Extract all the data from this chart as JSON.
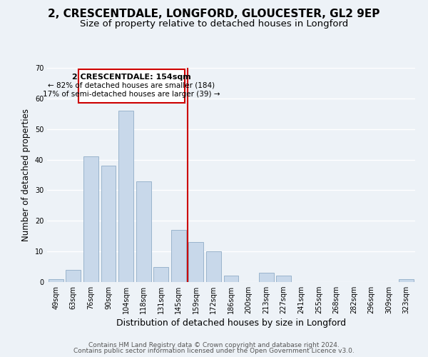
{
  "title": "2, CRESCENTDALE, LONGFORD, GLOUCESTER, GL2 9EP",
  "subtitle": "Size of property relative to detached houses in Longford",
  "xlabel": "Distribution of detached houses by size in Longford",
  "ylabel": "Number of detached properties",
  "bar_color": "#c8d8ea",
  "bar_edgecolor": "#9ab4cc",
  "categories": [
    "49sqm",
    "63sqm",
    "76sqm",
    "90sqm",
    "104sqm",
    "118sqm",
    "131sqm",
    "145sqm",
    "159sqm",
    "172sqm",
    "186sqm",
    "200sqm",
    "213sqm",
    "227sqm",
    "241sqm",
    "255sqm",
    "268sqm",
    "282sqm",
    "296sqm",
    "309sqm",
    "323sqm"
  ],
  "values": [
    1,
    4,
    41,
    38,
    56,
    33,
    5,
    17,
    13,
    10,
    2,
    0,
    3,
    2,
    0,
    0,
    0,
    0,
    0,
    0,
    1
  ],
  "ylim": [
    0,
    70
  ],
  "yticks": [
    0,
    10,
    20,
    30,
    40,
    50,
    60,
    70
  ],
  "vline_x": 7.5,
  "vline_color": "#cc0000",
  "annotation_title": "2 CRESCENTDALE: 154sqm",
  "annotation_line1": "← 82% of detached houses are smaller (184)",
  "annotation_line2": "17% of semi-detached houses are larger (39) →",
  "annotation_box_edgecolor": "#cc0000",
  "footer_line1": "Contains HM Land Registry data © Crown copyright and database right 2024.",
  "footer_line2": "Contains public sector information licensed under the Open Government Licence v3.0.",
  "background_color": "#edf2f7",
  "plot_background_color": "#edf2f7",
  "grid_color": "#ffffff",
  "title_fontsize": 11,
  "subtitle_fontsize": 9.5,
  "xlabel_fontsize": 9,
  "ylabel_fontsize": 8.5,
  "tick_fontsize": 7,
  "footer_fontsize": 6.5,
  "ann_title_fontsize": 8,
  "ann_text_fontsize": 7.5
}
